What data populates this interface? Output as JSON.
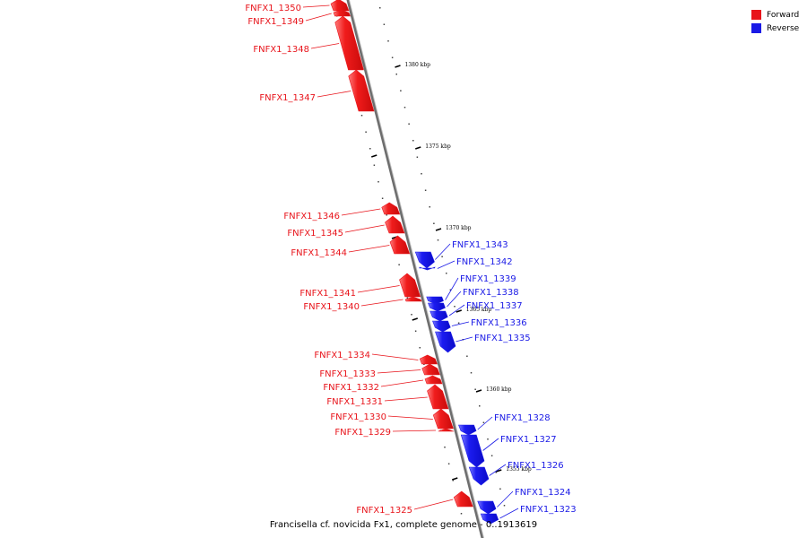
{
  "title": "Francisella cf. novicida Fx1, complete genome - 0..1913619",
  "legend": {
    "forward": {
      "label": "Forward",
      "color": "#e8141b"
    },
    "reverse": {
      "label": "Reverse",
      "color": "#1a1ae6"
    }
  },
  "ticks": [
    {
      "label": "1380 kbp"
    },
    {
      "label": "1375 kbp"
    },
    {
      "label": "1370 kbp"
    },
    {
      "label": "1365 kbp"
    },
    {
      "label": "1360 kbp"
    },
    {
      "label": "1355 kbp"
    }
  ],
  "genes": [
    {
      "name": "FNFX1_1350",
      "strand": "forward"
    },
    {
      "name": "FNFX1_1349",
      "strand": "forward"
    },
    {
      "name": "FNFX1_1348",
      "strand": "forward"
    },
    {
      "name": "FNFX1_1347",
      "strand": "forward"
    },
    {
      "name": "FNFX1_1346",
      "strand": "forward"
    },
    {
      "name": "FNFX1_1345",
      "strand": "forward"
    },
    {
      "name": "FNFX1_1344",
      "strand": "forward"
    },
    {
      "name": "FNFX1_1341",
      "strand": "forward"
    },
    {
      "name": "FNFX1_1340",
      "strand": "forward"
    },
    {
      "name": "FNFX1_1334",
      "strand": "forward"
    },
    {
      "name": "FNFX1_1333",
      "strand": "forward"
    },
    {
      "name": "FNFX1_1332",
      "strand": "forward"
    },
    {
      "name": "FNFX1_1331",
      "strand": "forward"
    },
    {
      "name": "FNFX1_1330",
      "strand": "forward"
    },
    {
      "name": "FNFX1_1329",
      "strand": "forward"
    },
    {
      "name": "FNFX1_1325",
      "strand": "forward"
    },
    {
      "name": "FNFX1_1343",
      "strand": "reverse"
    },
    {
      "name": "FNFX1_1342",
      "strand": "reverse"
    },
    {
      "name": "FNFX1_1339",
      "strand": "reverse"
    },
    {
      "name": "FNFX1_1338",
      "strand": "reverse"
    },
    {
      "name": "FNFX1_1337",
      "strand": "reverse"
    },
    {
      "name": "FNFX1_1336",
      "strand": "reverse"
    },
    {
      "name": "FNFX1_1335",
      "strand": "reverse"
    },
    {
      "name": "FNFX1_1328",
      "strand": "reverse"
    },
    {
      "name": "FNFX1_1327",
      "strand": "reverse"
    },
    {
      "name": "FNFX1_1326",
      "strand": "reverse"
    },
    {
      "name": "FNFX1_1324",
      "strand": "reverse"
    },
    {
      "name": "FNFX1_1323",
      "strand": "reverse"
    }
  ]
}
